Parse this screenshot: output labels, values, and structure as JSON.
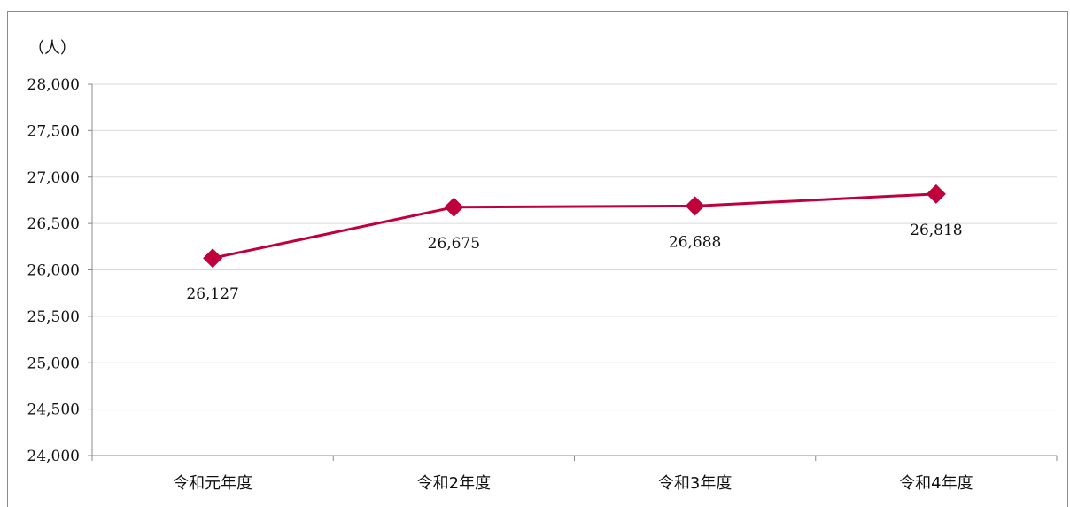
{
  "chart_data": {
    "type": "line",
    "title": "",
    "xlabel": "",
    "ylabel": "",
    "unit_label": "（人）",
    "categories": [
      "令和元年度",
      "令和2年度",
      "令和3年度",
      "令和4年度"
    ],
    "series": [
      {
        "values": [
          26127,
          26675,
          26688,
          26818
        ],
        "data_labels": [
          "26,127",
          "26,675",
          "26,688",
          "26,818"
        ],
        "color": "#c0003c"
      }
    ],
    "ylim": [
      24000,
      28000
    ],
    "y_ticks": [
      24000,
      24500,
      25000,
      25500,
      26000,
      26500,
      27000,
      27500,
      28000
    ],
    "y_tick_labels": [
      "24,000",
      "24,500",
      "25,000",
      "25,500",
      "26,000",
      "26,500",
      "27,000",
      "27,500",
      "28,000"
    ],
    "grid": true,
    "legend": "none",
    "colors": {
      "line": "#c0003c",
      "grid": "#d9d9d9",
      "axis": "#8a8a8a"
    }
  }
}
